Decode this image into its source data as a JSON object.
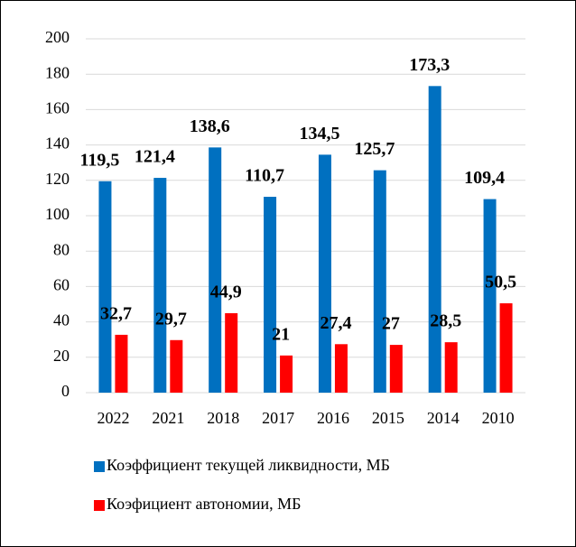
{
  "chart_data": {
    "type": "bar",
    "categories": [
      "2022",
      "2021",
      "2018",
      "2017",
      "2016",
      "2015",
      "2014",
      "2010"
    ],
    "series": [
      {
        "name": "Коэффициент текущей ликвидности, МБ",
        "color": "#0070c0",
        "values": [
          119.5,
          121.4,
          138.6,
          110.7,
          134.5,
          125.7,
          173.3,
          109.4
        ],
        "value_labels": [
          "119,5",
          "121,4",
          "138,6",
          "110,7",
          "134,5",
          "125,7",
          "173,3",
          "109,4"
        ]
      },
      {
        "name": "Коэфициент автономии, МБ",
        "color": "#ff0000",
        "values": [
          32.7,
          29.7,
          44.9,
          21,
          27.4,
          27,
          28.5,
          50.5
        ],
        "value_labels": [
          "32,7",
          "29,7",
          "44,9",
          "21",
          "27,4",
          "27",
          "28,5",
          "50,5"
        ]
      }
    ],
    "ylim": [
      0,
      200
    ],
    "yticks": [
      0,
      20,
      40,
      60,
      80,
      100,
      120,
      140,
      160,
      180,
      200
    ],
    "grid": true,
    "legend": "bottom"
  }
}
